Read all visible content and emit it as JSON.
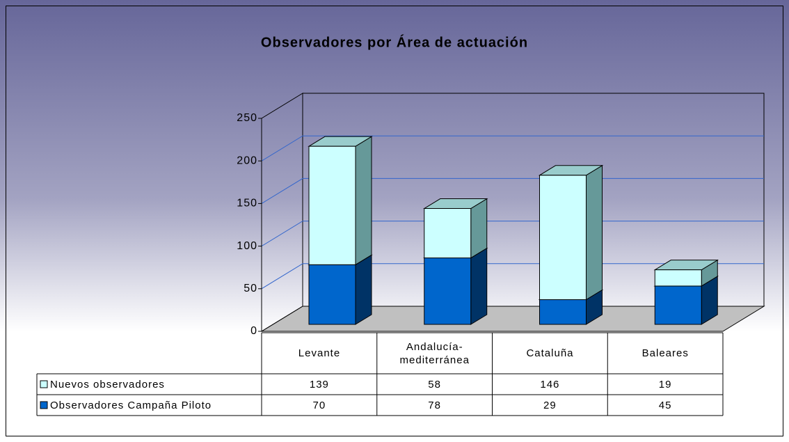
{
  "chart_data": {
    "type": "bar3d_stacked",
    "title": "Observadores por Área de actuación",
    "categories": [
      "Levante",
      "Andalucía-mediterránea",
      "Cataluña",
      "Baleares"
    ],
    "series": [
      {
        "name": "Observadores Campaña Piloto",
        "color": "#0066cc",
        "values": [
          70,
          78,
          29,
          45
        ]
      },
      {
        "name": "Nuevos observadores",
        "color": "#ccffff",
        "values": [
          139,
          58,
          146,
          19
        ]
      }
    ],
    "ylim": [
      0,
      250
    ],
    "yticks": [
      0,
      50,
      100,
      150,
      200,
      250
    ],
    "grid": true,
    "data_table": true
  }
}
